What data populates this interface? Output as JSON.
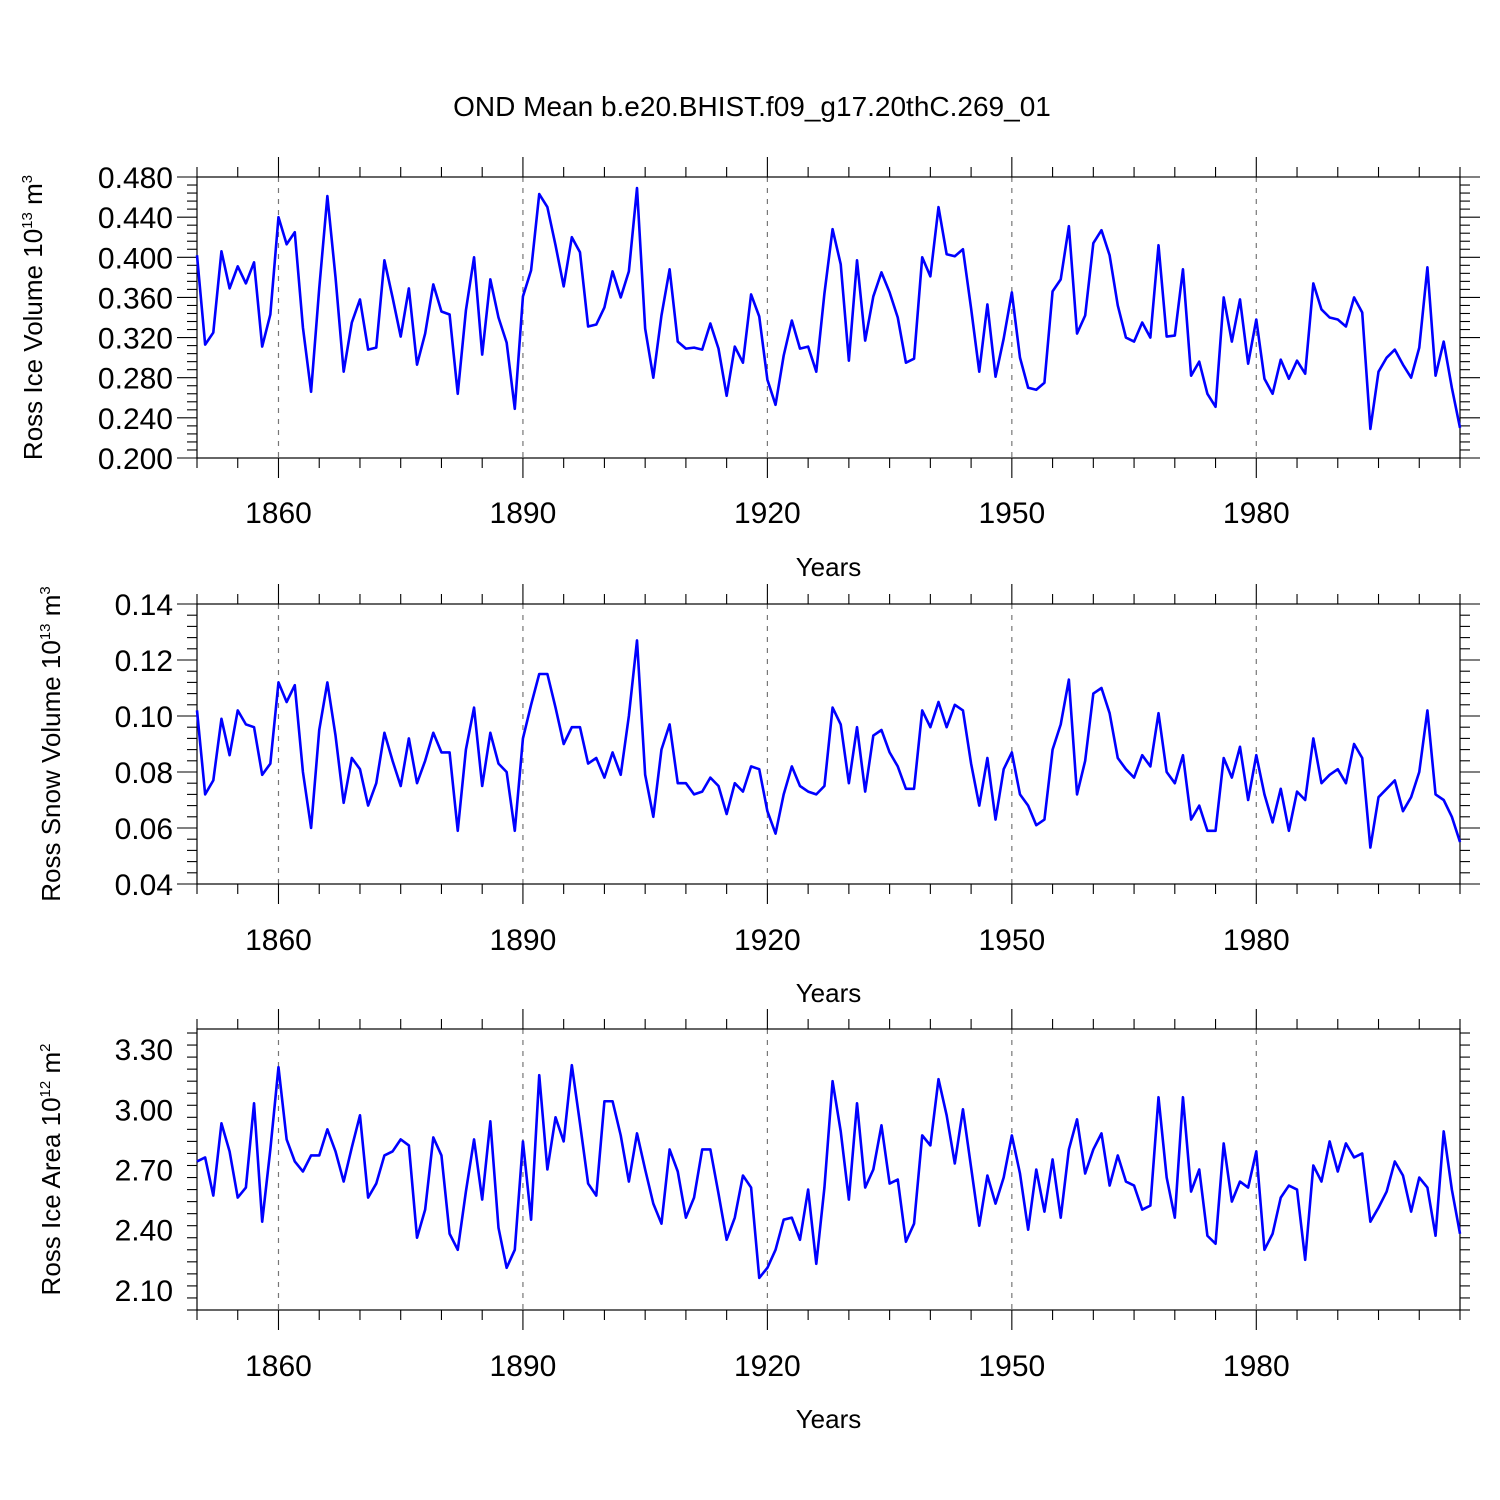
{
  "figure": {
    "title": "OND Mean b.e20.BHIST.f09_g17.20thC.269_01"
  },
  "chart_data": [
    {
      "type": "line",
      "title": "OND Mean b.e20.BHIST.f09_g17.20thC.269_01",
      "xlabel": "Years",
      "ylabel_main": "Ross Ice Volume 10",
      "ylabel_exp": "13",
      "ylabel_unit": " m",
      "ylabel_unit_exp": "3",
      "xlim": [
        1850,
        2005
      ],
      "ylim": [
        0.2,
        0.48
      ],
      "x_ticks": [
        1860,
        1890,
        1920,
        1950,
        1980
      ],
      "x_tick_labels": [
        "1860",
        "1890",
        "1920",
        "1950",
        "1980"
      ],
      "y_ticks": [
        0.2,
        0.24,
        0.28,
        0.32,
        0.36,
        0.4,
        0.44,
        0.48
      ],
      "y_tick_labels": [
        "0.200",
        "0.240",
        "0.280",
        "0.320",
        "0.360",
        "0.400",
        "0.440",
        "0.480"
      ],
      "grid": "vertical dashed at major x ticks",
      "series": [
        {
          "name": "Ross Ice Volume",
          "color": "#0000ff",
          "x_start": 1850,
          "x_step": 1,
          "values": [
            0.402,
            0.313,
            0.325,
            0.406,
            0.369,
            0.391,
            0.374,
            0.395,
            0.311,
            0.343,
            0.44,
            0.413,
            0.425,
            0.33,
            0.266,
            0.369,
            0.461,
            0.38,
            0.286,
            0.335,
            0.358,
            0.308,
            0.31,
            0.397,
            0.36,
            0.321,
            0.369,
            0.293,
            0.324,
            0.373,
            0.346,
            0.343,
            0.264,
            0.347,
            0.4,
            0.303,
            0.378,
            0.34,
            0.315,
            0.249,
            0.361,
            0.387,
            0.463,
            0.45,
            0.412,
            0.371,
            0.42,
            0.405,
            0.331,
            0.333,
            0.35,
            0.386,
            0.36,
            0.386,
            0.469,
            0.329,
            0.28,
            0.342,
            0.388,
            0.316,
            0.309,
            0.31,
            0.308,
            0.334,
            0.309,
            0.262,
            0.311,
            0.295,
            0.363,
            0.341,
            0.278,
            0.253,
            0.302,
            0.337,
            0.309,
            0.311,
            0.286,
            0.364,
            0.428,
            0.393,
            0.297,
            0.397,
            0.317,
            0.361,
            0.385,
            0.365,
            0.34,
            0.295,
            0.299,
            0.4,
            0.381,
            0.45,
            0.403,
            0.401,
            0.408,
            0.349,
            0.286,
            0.353,
            0.281,
            0.319,
            0.365,
            0.3,
            0.27,
            0.268,
            0.275,
            0.366,
            0.378,
            0.431,
            0.324,
            0.342,
            0.414,
            0.427,
            0.402,
            0.352,
            0.32,
            0.316,
            0.335,
            0.32,
            0.412,
            0.321,
            0.322,
            0.388,
            0.282,
            0.296,
            0.264,
            0.251,
            0.36,
            0.316,
            0.358,
            0.294,
            0.338,
            0.279,
            0.264,
            0.298,
            0.279,
            0.297,
            0.284,
            0.374,
            0.348,
            0.34,
            0.338,
            0.331,
            0.36,
            0.345,
            0.229,
            0.286,
            0.3,
            0.308,
            0.293,
            0.28,
            0.31,
            0.39,
            0.282,
            0.316,
            0.27,
            0.23
          ]
        }
      ]
    },
    {
      "type": "line",
      "title": "",
      "xlabel": "Years",
      "ylabel_main": "Ross Snow Volume 10",
      "ylabel_exp": "13",
      "ylabel_unit": " m",
      "ylabel_unit_exp": "3",
      "xlim": [
        1850,
        2005
      ],
      "ylim": [
        0.04,
        0.14
      ],
      "x_ticks": [
        1860,
        1890,
        1920,
        1950,
        1980
      ],
      "x_tick_labels": [
        "1860",
        "1890",
        "1920",
        "1950",
        "1980"
      ],
      "y_ticks": [
        0.04,
        0.06,
        0.08,
        0.1,
        0.12,
        0.14
      ],
      "y_tick_labels": [
        "0.04",
        "0.06",
        "0.08",
        "0.10",
        "0.12",
        "0.14"
      ],
      "grid": "vertical dashed at major x ticks",
      "series": [
        {
          "name": "Ross Snow Volume",
          "color": "#0000ff",
          "x_start": 1850,
          "x_step": 1,
          "values": [
            0.102,
            0.072,
            0.077,
            0.099,
            0.086,
            0.102,
            0.097,
            0.096,
            0.079,
            0.083,
            0.112,
            0.105,
            0.111,
            0.08,
            0.06,
            0.095,
            0.112,
            0.093,
            0.069,
            0.085,
            0.081,
            0.068,
            0.076,
            0.094,
            0.084,
            0.075,
            0.092,
            0.076,
            0.084,
            0.094,
            0.087,
            0.087,
            0.059,
            0.088,
            0.103,
            0.075,
            0.094,
            0.083,
            0.08,
            0.059,
            0.092,
            0.104,
            0.115,
            0.115,
            0.103,
            0.09,
            0.096,
            0.096,
            0.083,
            0.085,
            0.078,
            0.087,
            0.079,
            0.1,
            0.127,
            0.079,
            0.064,
            0.088,
            0.097,
            0.076,
            0.076,
            0.072,
            0.073,
            0.078,
            0.075,
            0.065,
            0.076,
            0.073,
            0.082,
            0.081,
            0.066,
            0.058,
            0.072,
            0.082,
            0.075,
            0.073,
            0.072,
            0.075,
            0.103,
            0.097,
            0.076,
            0.096,
            0.073,
            0.093,
            0.095,
            0.087,
            0.082,
            0.074,
            0.074,
            0.102,
            0.096,
            0.105,
            0.096,
            0.104,
            0.102,
            0.083,
            0.068,
            0.085,
            0.063,
            0.081,
            0.087,
            0.072,
            0.068,
            0.061,
            0.063,
            0.088,
            0.097,
            0.113,
            0.072,
            0.084,
            0.108,
            0.11,
            0.101,
            0.085,
            0.081,
            0.078,
            0.086,
            0.082,
            0.101,
            0.08,
            0.076,
            0.086,
            0.063,
            0.068,
            0.059,
            0.059,
            0.085,
            0.078,
            0.089,
            0.07,
            0.086,
            0.072,
            0.062,
            0.074,
            0.059,
            0.073,
            0.07,
            0.092,
            0.076,
            0.079,
            0.081,
            0.076,
            0.09,
            0.085,
            0.053,
            0.071,
            0.074,
            0.077,
            0.066,
            0.071,
            0.08,
            0.102,
            0.072,
            0.07,
            0.064,
            0.055
          ]
        }
      ]
    },
    {
      "type": "line",
      "title": "",
      "xlabel": "Years",
      "ylabel_main": "Ross Ice Area 10",
      "ylabel_exp": "12",
      "ylabel_unit": " m",
      "ylabel_unit_exp": "2",
      "xlim": [
        1850,
        2005
      ],
      "ylim": [
        2.0,
        3.4
      ],
      "x_ticks": [
        1860,
        1890,
        1920,
        1950,
        1980
      ],
      "x_tick_labels": [
        "1860",
        "1890",
        "1920",
        "1950",
        "1980"
      ],
      "y_ticks": [
        2.1,
        2.4,
        2.7,
        3.0,
        3.3
      ],
      "y_tick_labels": [
        "2.10",
        "2.40",
        "2.70",
        "3.00",
        "3.30"
      ],
      "grid": "vertical dashed at major x ticks",
      "series": [
        {
          "name": "Ross Ice Area",
          "color": "#0000ff",
          "x_start": 1850,
          "x_step": 1,
          "values": [
            2.74,
            2.76,
            2.57,
            2.93,
            2.79,
            2.56,
            2.61,
            3.03,
            2.44,
            2.8,
            3.21,
            2.85,
            2.74,
            2.69,
            2.77,
            2.77,
            2.9,
            2.79,
            2.64,
            2.81,
            2.97,
            2.56,
            2.63,
            2.77,
            2.79,
            2.85,
            2.82,
            2.36,
            2.5,
            2.86,
            2.77,
            2.38,
            2.3,
            2.59,
            2.85,
            2.55,
            2.94,
            2.41,
            2.21,
            2.3,
            2.84,
            2.45,
            3.17,
            2.7,
            2.96,
            2.84,
            3.22,
            2.93,
            2.63,
            2.57,
            3.04,
            3.04,
            2.87,
            2.64,
            2.88,
            2.7,
            2.53,
            2.43,
            2.8,
            2.69,
            2.46,
            2.56,
            2.8,
            2.8,
            2.58,
            2.35,
            2.46,
            2.67,
            2.61,
            2.16,
            2.21,
            2.3,
            2.45,
            2.46,
            2.35,
            2.6,
            2.23,
            2.61,
            3.14,
            2.89,
            2.55,
            3.03,
            2.61,
            2.7,
            2.92,
            2.63,
            2.65,
            2.34,
            2.43,
            2.87,
            2.82,
            3.15,
            2.97,
            2.73,
            3.0,
            2.71,
            2.42,
            2.67,
            2.53,
            2.66,
            2.87,
            2.68,
            2.4,
            2.7,
            2.49,
            2.75,
            2.46,
            2.8,
            2.95,
            2.68,
            2.8,
            2.88,
            2.62,
            2.77,
            2.64,
            2.62,
            2.5,
            2.52,
            3.06,
            2.66,
            2.46,
            3.06,
            2.59,
            2.7,
            2.37,
            2.33,
            2.83,
            2.54,
            2.64,
            2.61,
            2.79,
            2.3,
            2.38,
            2.56,
            2.62,
            2.6,
            2.25,
            2.72,
            2.64,
            2.84,
            2.69,
            2.83,
            2.76,
            2.78,
            2.44,
            2.51,
            2.59,
            2.74,
            2.67,
            2.49,
            2.66,
            2.61,
            2.37,
            2.89,
            2.6,
            2.38
          ]
        }
      ]
    }
  ]
}
